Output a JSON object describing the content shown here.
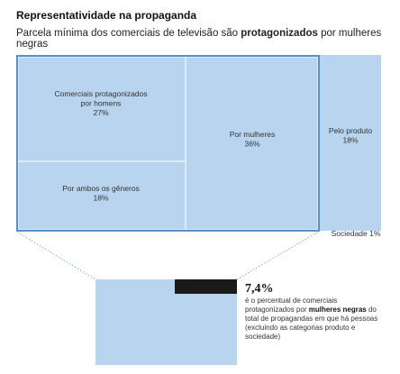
{
  "title": "Representatividade na propaganda",
  "subtitle": {
    "before": "Parcela mínima dos comerciais de televisão são ",
    "bold": "protagonizados",
    "after": " por mulheres negras"
  },
  "chart_data": {
    "type": "treemap",
    "unit": "%",
    "cells": [
      {
        "label_lines": [
          "Comerciais protagonizados",
          "por homens"
        ],
        "value_label": "27%",
        "value": 27
      },
      {
        "label_lines": [
          "Por ambos os gêneros"
        ],
        "value_label": "18%",
        "value": 18
      },
      {
        "label_lines": [
          "Por mulheres"
        ],
        "value_label": "36%",
        "value": 36
      },
      {
        "label_lines": [
          "Pelo produto"
        ],
        "value_label": "18%",
        "value": 18
      },
      {
        "label_lines": [
          "Sociedade 1%"
        ],
        "value_label": "",
        "value": 1
      }
    ],
    "highlight": {
      "value": 7.4,
      "value_label": "7,4%",
      "note": {
        "before": "é o percentual de comerciais protagonizados por ",
        "bold": "mulheres negras",
        "after": " do total de propagandas em que há pessoas (excluindo as categorias produto e sociedade)"
      }
    },
    "colors": {
      "cell": "#b8d4ee",
      "border": "#5b8fc7",
      "highlight": "#1a1a1a"
    }
  }
}
